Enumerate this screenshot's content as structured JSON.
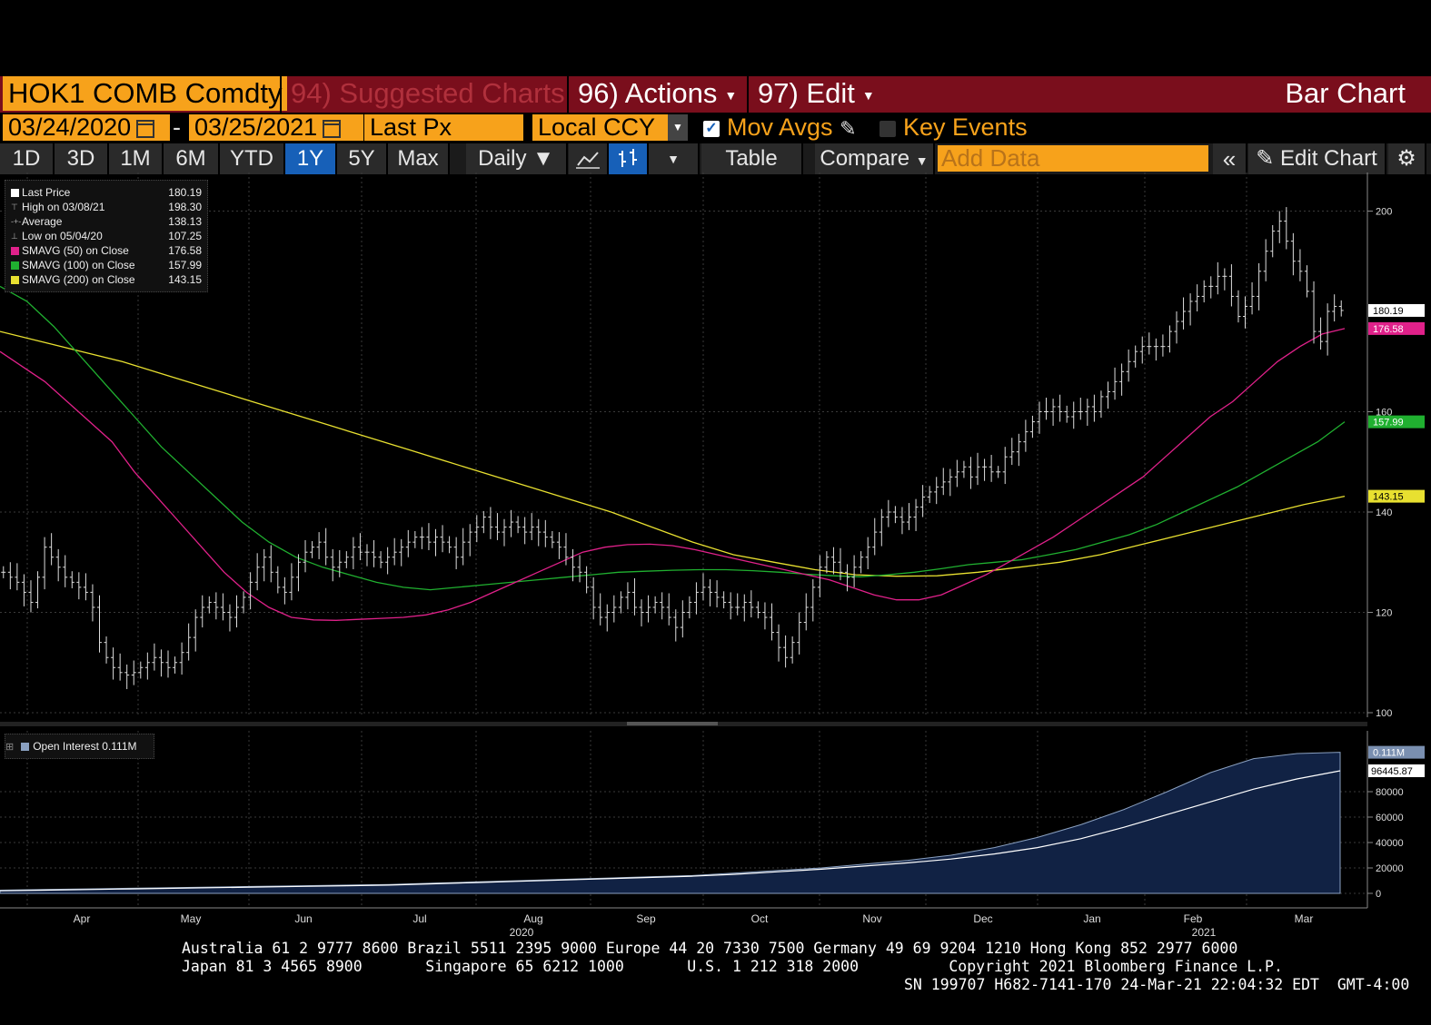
{
  "header": {
    "ticker": "HOK1 COMB Comdty",
    "suggested": "94) Suggested Charts",
    "actions": "96) Actions",
    "edit": "97) Edit",
    "chart_title": "Bar Chart"
  },
  "controls": {
    "start_date": "03/24/2020",
    "dash": "-",
    "end_date": "03/25/2021",
    "field": "Last Px",
    "currency": "Local CCY",
    "mov_avgs": "Mov Avgs",
    "key_events": "Key Events"
  },
  "toolbar": {
    "periods": [
      "1D",
      "3D",
      "1M",
      "6M",
      "YTD",
      "1Y",
      "5Y",
      "Max"
    ],
    "selected_period": "1Y",
    "frequency": "Daily",
    "table": "Table",
    "compare": "Compare",
    "add_data_placeholder": "Add Data",
    "edit_chart": "Edit Chart"
  },
  "legend": [
    {
      "label": "Last Price",
      "value": "180.19",
      "color": "#ffffff"
    },
    {
      "label": "High on 03/08/21",
      "value": "198.30",
      "color": ""
    },
    {
      "label": "Average",
      "value": "138.13",
      "color": ""
    },
    {
      "label": "Low on 05/04/20",
      "value": "107.25",
      "color": ""
    },
    {
      "label": "SMAVG (50)  on Close",
      "value": "176.58",
      "color": "#e0218a"
    },
    {
      "label": "SMAVG (100)  on Close",
      "value": "157.99",
      "color": "#20b030"
    },
    {
      "label": "SMAVG (200)  on Close",
      "value": "143.15",
      "color": "#e8e030"
    }
  ],
  "oi_legend": "Open Interest 0.111M",
  "colors": {
    "brand": "#f7a21b",
    "header_bg": "#7a0e1c",
    "selected": "#1760b8",
    "sma50": "#e0218a",
    "sma100": "#20b030",
    "sma200": "#e8e030",
    "oi_fill": "#112244"
  },
  "chart_data": [
    {
      "type": "bar",
      "title": "HOK1 COMB Comdty",
      "ylim": [
        100,
        205
      ],
      "yticks": [
        100,
        120,
        140,
        160,
        200
      ],
      "x_month_labels": [
        "Apr",
        "May",
        "Jun",
        "Jul",
        "Aug",
        "Sep",
        "Oct",
        "Nov",
        "Dec",
        "Jan",
        "Feb",
        "Mar"
      ],
      "x_year_labels": [
        "2020",
        "2021"
      ],
      "price_tags": [
        {
          "name": "Last",
          "value": "180.19",
          "y": 180.19
        },
        {
          "name": "SMAVG 50",
          "value": "176.58",
          "y": 176.58
        },
        {
          "name": "SMAVG 100",
          "value": "157.99",
          "y": 157.99
        },
        {
          "name": "SMAVG 200",
          "value": "143.15",
          "y": 143.15
        }
      ],
      "close": [
        128,
        127,
        126,
        124,
        122,
        127,
        133,
        131,
        129,
        127,
        126,
        125,
        124,
        121,
        114,
        111,
        109,
        108,
        107.5,
        108,
        109,
        110,
        111,
        110,
        109,
        110,
        112,
        115,
        119,
        121,
        122,
        121,
        120,
        119,
        121,
        123,
        126,
        129,
        131,
        128,
        125,
        124,
        127,
        130,
        132,
        133,
        134,
        131,
        129,
        130,
        131,
        133,
        132,
        132,
        131,
        130,
        131,
        132,
        133,
        134,
        135,
        135,
        134,
        135,
        134,
        133,
        131,
        134,
        136,
        137,
        139,
        137,
        136,
        137,
        138,
        137,
        136,
        137,
        136,
        135,
        134,
        133,
        131,
        129,
        128,
        125,
        121,
        119,
        120,
        121,
        123,
        124,
        121,
        120,
        121,
        122,
        121,
        119,
        117,
        120,
        122,
        124,
        125,
        124,
        123,
        122,
        121,
        121,
        122,
        121,
        120,
        119,
        116,
        113,
        111,
        114,
        118,
        121,
        125,
        129,
        131,
        130,
        128,
        127,
        129,
        131,
        133,
        136,
        139,
        140,
        139,
        138,
        139,
        141,
        143,
        144,
        145,
        146,
        147,
        148,
        149,
        147,
        149,
        149,
        148,
        148,
        151,
        152,
        154,
        156,
        158,
        160,
        160,
        161,
        160,
        159,
        160,
        160,
        161,
        160,
        163,
        164,
        166,
        168,
        170,
        172,
        173,
        173,
        173,
        173,
        176,
        178,
        180,
        182,
        183,
        185,
        185,
        187,
        187,
        183,
        179,
        181,
        183,
        188,
        192,
        196,
        198,
        194,
        190,
        188,
        184,
        176,
        174,
        180,
        181,
        180.19
      ],
      "sma50": [
        172,
        169,
        166,
        162,
        158,
        154,
        148,
        143,
        138,
        133,
        128,
        124,
        121,
        119,
        118.5,
        118.4,
        118.6,
        118.8,
        119,
        119.5,
        120.5,
        122,
        124,
        126,
        128,
        130,
        132,
        133,
        133.5,
        133.6,
        133.3,
        132.5,
        131.5,
        130.5,
        129.5,
        128.5,
        127.5,
        126.5,
        125,
        123.5,
        122.5,
        122.5,
        123.5,
        125.5,
        127.5,
        130,
        132.5,
        135,
        138,
        141,
        144,
        147,
        151,
        155,
        159,
        162,
        166,
        170,
        173,
        175.5,
        176.58
      ],
      "sma100": [
        185,
        182,
        177,
        171,
        165,
        159,
        153,
        148,
        143,
        138,
        134,
        131,
        129,
        127.5,
        126,
        125,
        124.5,
        125,
        125.5,
        126,
        126.5,
        127,
        127.5,
        128,
        128.2,
        128.4,
        128.5,
        128.5,
        128.3,
        128,
        127.6,
        127.3,
        127.1,
        127.5,
        128,
        128.7,
        129.5,
        130,
        130.5,
        131.5,
        132.5,
        134,
        135.5,
        137.5,
        140,
        142.5,
        145,
        148,
        151,
        154,
        157.99
      ],
      "sma200": [
        176,
        174,
        172,
        170,
        167.5,
        165,
        162.5,
        160,
        157.5,
        155,
        152.5,
        150,
        147.5,
        145,
        142.5,
        140,
        137,
        134,
        131.5,
        130,
        128.5,
        127.5,
        127.2,
        127.3,
        128,
        129,
        130,
        131.5,
        133.5,
        135.5,
        137.5,
        139.5,
        141.5,
        143.15
      ]
    },
    {
      "type": "area",
      "title": "Open Interest",
      "ylim": [
        0,
        120000
      ],
      "yticks": [
        0,
        20000,
        40000,
        60000,
        80000
      ],
      "last_value": "0.111M",
      "sma_value": "96445.87",
      "series": [
        {
          "name": "Open Interest",
          "values": [
            2500,
            3000,
            3500,
            4000,
            4500,
            5000,
            5500,
            6000,
            6500,
            7000,
            8000,
            9000,
            10000,
            11000,
            12000,
            13000,
            14000,
            16000,
            18000,
            20000,
            23000,
            26000,
            30000,
            36000,
            44000,
            54000,
            66000,
            80000,
            95000,
            106000,
            110000,
            111000
          ]
        },
        {
          "name": "Average",
          "values": [
            2000,
            2500,
            3000,
            3500,
            4000,
            4500,
            5000,
            5500,
            6000,
            6500,
            7500,
            8500,
            9500,
            10500,
            11500,
            12500,
            13500,
            15000,
            17000,
            19000,
            21500,
            24000,
            27000,
            31000,
            36000,
            43000,
            52000,
            62000,
            72000,
            82000,
            90000,
            96445.87
          ]
        }
      ]
    }
  ],
  "y_tick_labels": [
    "200",
    "160",
    "140",
    "120",
    "100"
  ],
  "oi_tick_labels": [
    "80000",
    "60000",
    "40000",
    "20000",
    "0"
  ],
  "footer": {
    "line1": "Australia 61 2 9777 8600 Brazil 5511 2395 9000 Europe 44 20 7330 7500 Germany 49 69 9204 1210 Hong Kong 852 2977 6000",
    "line2": "Japan 81 3 4565 8900       Singapore 65 6212 1000       U.S. 1 212 318 2000          Copyright 2021 Bloomberg Finance L.P.",
    "line3": "SN 199707 H682-7141-170 24-Mar-21 22:04:32 EDT  GMT-4:00"
  }
}
